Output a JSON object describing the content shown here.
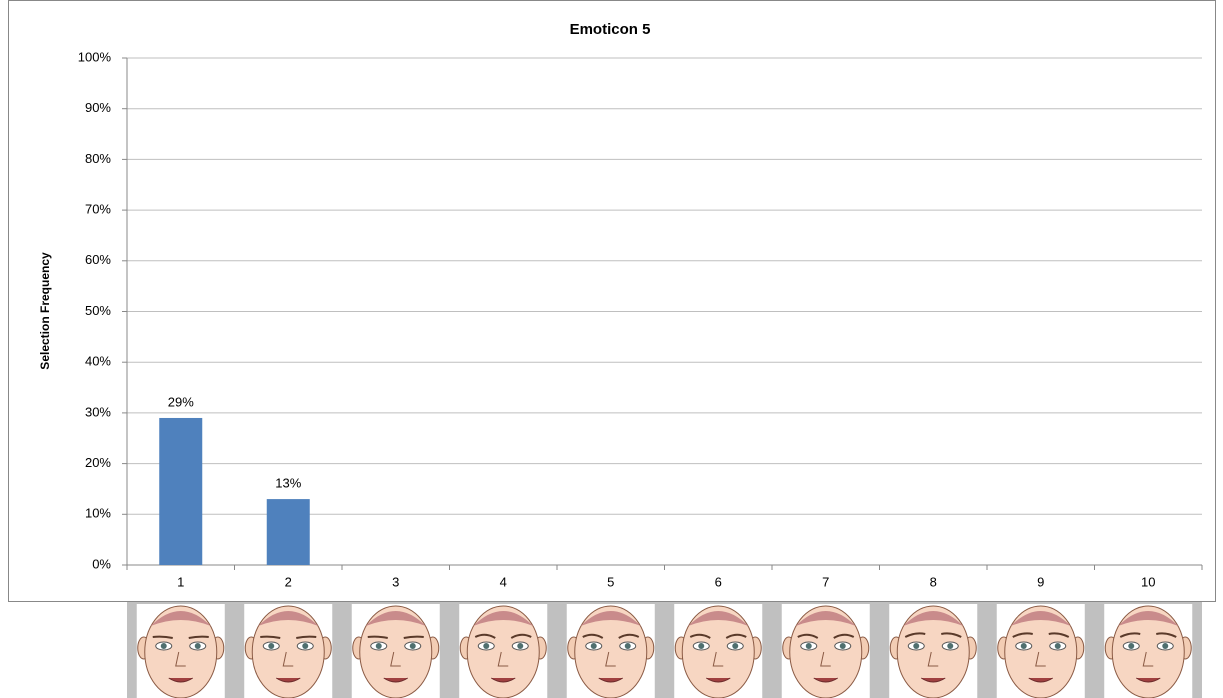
{
  "chart_data": {
    "type": "bar",
    "title": "Emoticon 5",
    "y_label": "Selection Frequency",
    "categories": [
      "1",
      "2",
      "3",
      "4",
      "5",
      "6",
      "7",
      "8",
      "9",
      "10"
    ],
    "values": [
      29,
      13,
      0,
      0,
      0,
      0,
      0,
      0,
      0,
      0
    ],
    "value_labels": [
      "29%",
      "13%",
      null,
      null,
      null,
      null,
      null,
      null,
      null,
      null
    ],
    "color": "#4f81bd",
    "ylim": [
      0,
      100
    ],
    "yticks": [
      {
        "value": 0,
        "label": "0%"
      },
      {
        "value": 10,
        "label": "10%"
      },
      {
        "value": 20,
        "label": "20%"
      },
      {
        "value": 30,
        "label": "30%"
      },
      {
        "value": 40,
        "label": "40%"
      },
      {
        "value": 50,
        "label": "50%"
      },
      {
        "value": 60,
        "label": "60%"
      },
      {
        "value": 70,
        "label": "70%"
      },
      {
        "value": 80,
        "label": "80%"
      },
      {
        "value": 90,
        "label": "90%"
      },
      {
        "value": 100,
        "label": "100%"
      }
    ],
    "grid": true
  }
}
